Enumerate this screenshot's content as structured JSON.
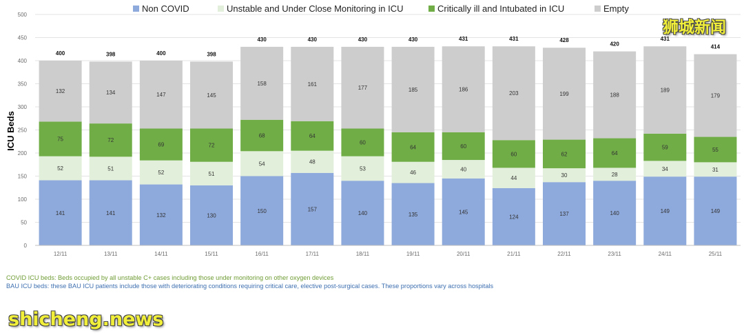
{
  "chart_data": {
    "type": "bar",
    "stacked": true,
    "categories": [
      "12/11",
      "13/11",
      "14/11",
      "15/11",
      "16/11",
      "17/11",
      "18/11",
      "19/11",
      "20/11",
      "21/11",
      "22/11",
      "23/11",
      "24/11",
      "25/11"
    ],
    "series": [
      {
        "name": "Non COVID",
        "color": "#8ea9db",
        "values": [
          141,
          141,
          132,
          130,
          150,
          157,
          140,
          135,
          145,
          124,
          137,
          140,
          149,
          149
        ]
      },
      {
        "name": "Unstable and Under Close Monitoring in ICU",
        "color": "#e2efda",
        "values": [
          52,
          51,
          52,
          51,
          54,
          48,
          53,
          46,
          40,
          44,
          30,
          28,
          34,
          31
        ]
      },
      {
        "name": "Critically ill and Intubated in ICU",
        "color": "#70ad47",
        "values": [
          75,
          72,
          69,
          72,
          68,
          64,
          60,
          64,
          60,
          60,
          62,
          64,
          59,
          55
        ]
      },
      {
        "name": "Empty",
        "color": "#cdcdcd",
        "values": [
          132,
          134,
          147,
          145,
          158,
          161,
          177,
          185,
          186,
          203,
          199,
          188,
          189,
          179
        ]
      }
    ],
    "totals": [
      400,
      398,
      400,
      398,
      430,
      430,
      430,
      430,
      431,
      431,
      428,
      420,
      431,
      414
    ],
    "ylabel": "ICU Beds",
    "ylim": [
      0,
      500
    ],
    "yticks": [
      0,
      50,
      100,
      150,
      200,
      250,
      300,
      350,
      400,
      450,
      500
    ],
    "legend_position": "top",
    "grid": true
  },
  "notes": {
    "covid": "COVID ICU beds: Beds occupied by all unstable C+ cases including those under monitoring on other oxygen devices",
    "bau": "BAU ICU beds: these BAU ICU patients include those with deteriorating conditions requiring critical care, elective post-surgical cases. These proportions vary across hospitals"
  },
  "watermarks": {
    "top": "狮城新闻",
    "bottom": "shicheng.news"
  }
}
